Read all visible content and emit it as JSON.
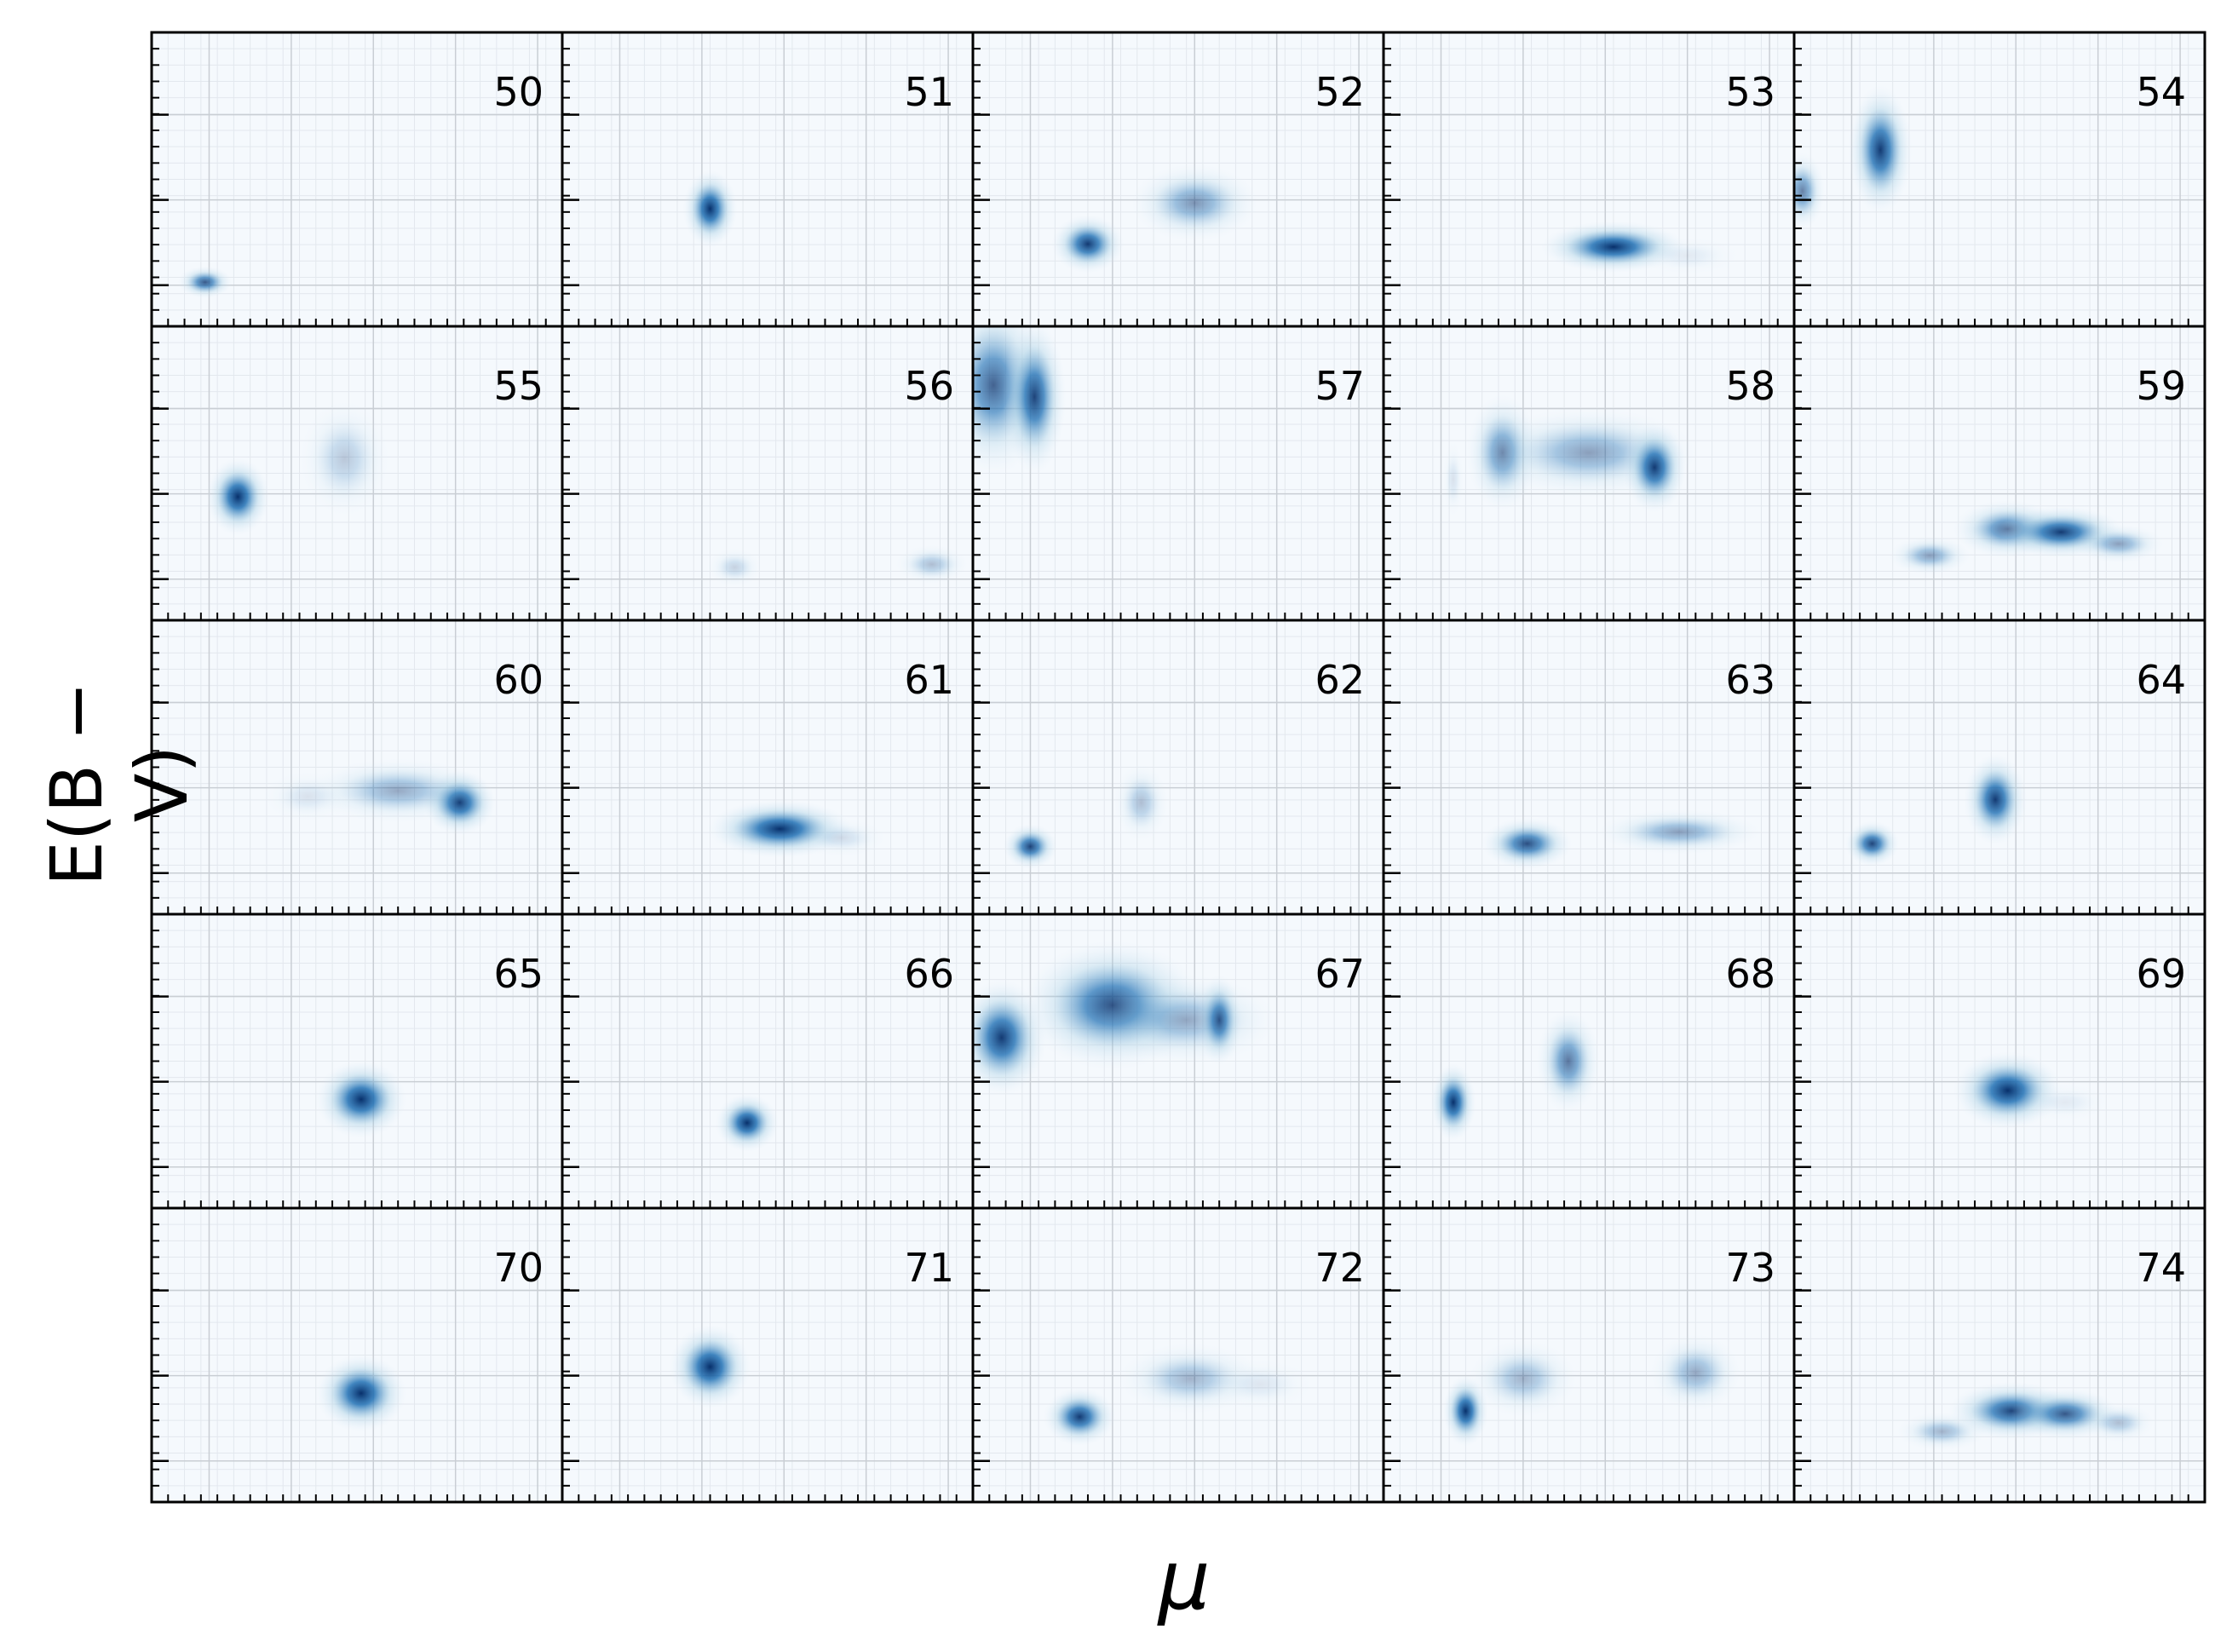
{
  "figure": {
    "xlabel": "μ",
    "ylabel": "E(B − V)"
  },
  "chart_data": {
    "type": "heatmap",
    "colormap": "Blues",
    "grid": true,
    "layout": {
      "rows": 5,
      "cols": 5
    },
    "xlabel": "μ",
    "ylabel": "E(B − V)",
    "axis_range_fraction": {
      "x": [
        0,
        1
      ],
      "y": [
        0,
        1
      ]
    },
    "panels": [
      {
        "label": "50",
        "blobs": [
          {
            "x": 0.13,
            "y": 0.15,
            "sx": 0.03,
            "sy": 0.025,
            "w": 0.8
          }
        ]
      },
      {
        "label": "51",
        "blobs": [
          {
            "x": 0.36,
            "y": 0.4,
            "sx": 0.03,
            "sy": 0.06,
            "w": 1.0
          }
        ]
      },
      {
        "label": "52",
        "blobs": [
          {
            "x": 0.28,
            "y": 0.28,
            "sx": 0.04,
            "sy": 0.045,
            "w": 0.95
          },
          {
            "x": 0.54,
            "y": 0.42,
            "sx": 0.07,
            "sy": 0.06,
            "w": 0.5
          }
        ]
      },
      {
        "label": "53",
        "blobs": [
          {
            "x": 0.56,
            "y": 0.27,
            "sx": 0.08,
            "sy": 0.04,
            "w": 1.0
          },
          {
            "x": 0.74,
            "y": 0.24,
            "sx": 0.06,
            "sy": 0.03,
            "w": 0.08
          }
        ]
      },
      {
        "label": "54",
        "blobs": [
          {
            "x": 0.02,
            "y": 0.46,
            "sx": 0.025,
            "sy": 0.06,
            "w": 0.6
          },
          {
            "x": 0.21,
            "y": 0.6,
            "sx": 0.035,
            "sy": 0.1,
            "w": 0.95
          }
        ]
      },
      {
        "label": "55",
        "blobs": [
          {
            "x": 0.21,
            "y": 0.42,
            "sx": 0.035,
            "sy": 0.06,
            "w": 1.0
          },
          {
            "x": 0.47,
            "y": 0.55,
            "sx": 0.05,
            "sy": 0.09,
            "w": 0.25
          }
        ]
      },
      {
        "label": "56",
        "blobs": [
          {
            "x": 0.42,
            "y": 0.18,
            "sx": 0.03,
            "sy": 0.03,
            "w": 0.2
          },
          {
            "x": 0.9,
            "y": 0.19,
            "sx": 0.04,
            "sy": 0.03,
            "w": 0.3
          }
        ]
      },
      {
        "label": "57",
        "blobs": [
          {
            "x": 0.05,
            "y": 0.8,
            "sx": 0.06,
            "sy": 0.14,
            "w": 0.75
          },
          {
            "x": 0.15,
            "y": 0.76,
            "sx": 0.035,
            "sy": 0.12,
            "w": 0.9
          }
        ]
      },
      {
        "label": "58",
        "blobs": [
          {
            "x": 0.29,
            "y": 0.57,
            "sx": 0.04,
            "sy": 0.09,
            "w": 0.6
          },
          {
            "x": 0.5,
            "y": 0.57,
            "sx": 0.12,
            "sy": 0.07,
            "w": 0.45
          },
          {
            "x": 0.66,
            "y": 0.52,
            "sx": 0.035,
            "sy": 0.07,
            "w": 0.95
          },
          {
            "x": 0.17,
            "y": 0.48,
            "sx": 0.012,
            "sy": 0.06,
            "w": 0.12
          }
        ]
      },
      {
        "label": "59",
        "blobs": [
          {
            "x": 0.33,
            "y": 0.22,
            "sx": 0.045,
            "sy": 0.03,
            "w": 0.45
          },
          {
            "x": 0.52,
            "y": 0.31,
            "sx": 0.06,
            "sy": 0.045,
            "w": 0.7
          },
          {
            "x": 0.65,
            "y": 0.3,
            "sx": 0.07,
            "sy": 0.04,
            "w": 0.95
          },
          {
            "x": 0.79,
            "y": 0.26,
            "sx": 0.05,
            "sy": 0.03,
            "w": 0.45
          }
        ]
      },
      {
        "label": "60",
        "blobs": [
          {
            "x": 0.75,
            "y": 0.38,
            "sx": 0.04,
            "sy": 0.05,
            "w": 1.0
          },
          {
            "x": 0.6,
            "y": 0.42,
            "sx": 0.1,
            "sy": 0.05,
            "w": 0.4
          },
          {
            "x": 0.38,
            "y": 0.4,
            "sx": 0.05,
            "sy": 0.04,
            "w": 0.12
          }
        ]
      },
      {
        "label": "61",
        "blobs": [
          {
            "x": 0.53,
            "y": 0.29,
            "sx": 0.08,
            "sy": 0.045,
            "w": 1.0
          },
          {
            "x": 0.68,
            "y": 0.26,
            "sx": 0.05,
            "sy": 0.03,
            "w": 0.15
          }
        ]
      },
      {
        "label": "62",
        "blobs": [
          {
            "x": 0.14,
            "y": 0.23,
            "sx": 0.03,
            "sy": 0.035,
            "w": 0.9
          },
          {
            "x": 0.41,
            "y": 0.38,
            "sx": 0.03,
            "sy": 0.06,
            "w": 0.3
          }
        ]
      },
      {
        "label": "63",
        "blobs": [
          {
            "x": 0.35,
            "y": 0.24,
            "sx": 0.05,
            "sy": 0.04,
            "w": 0.85
          },
          {
            "x": 0.72,
            "y": 0.28,
            "sx": 0.09,
            "sy": 0.035,
            "w": 0.45
          }
        ]
      },
      {
        "label": "64",
        "blobs": [
          {
            "x": 0.19,
            "y": 0.24,
            "sx": 0.03,
            "sy": 0.035,
            "w": 0.9
          },
          {
            "x": 0.49,
            "y": 0.39,
            "sx": 0.035,
            "sy": 0.07,
            "w": 0.95
          }
        ]
      },
      {
        "label": "65",
        "blobs": [
          {
            "x": 0.51,
            "y": 0.37,
            "sx": 0.05,
            "sy": 0.06,
            "w": 1.0
          }
        ]
      },
      {
        "label": "66",
        "blobs": [
          {
            "x": 0.45,
            "y": 0.29,
            "sx": 0.035,
            "sy": 0.045,
            "w": 1.0
          }
        ]
      },
      {
        "label": "67",
        "blobs": [
          {
            "x": 0.07,
            "y": 0.58,
            "sx": 0.05,
            "sy": 0.09,
            "w": 0.95
          },
          {
            "x": 0.34,
            "y": 0.69,
            "sx": 0.1,
            "sy": 0.1,
            "w": 0.85
          },
          {
            "x": 0.52,
            "y": 0.64,
            "sx": 0.1,
            "sy": 0.07,
            "w": 0.4
          },
          {
            "x": 0.6,
            "y": 0.64,
            "sx": 0.025,
            "sy": 0.07,
            "w": 0.8
          }
        ]
      },
      {
        "label": "68",
        "blobs": [
          {
            "x": 0.17,
            "y": 0.36,
            "sx": 0.025,
            "sy": 0.06,
            "w": 1.0
          },
          {
            "x": 0.45,
            "y": 0.5,
            "sx": 0.035,
            "sy": 0.08,
            "w": 0.65
          }
        ]
      },
      {
        "label": "69",
        "blobs": [
          {
            "x": 0.52,
            "y": 0.4,
            "sx": 0.06,
            "sy": 0.06,
            "w": 1.0
          },
          {
            "x": 0.66,
            "y": 0.36,
            "sx": 0.05,
            "sy": 0.03,
            "w": 0.08
          }
        ]
      },
      {
        "label": "70",
        "blobs": [
          {
            "x": 0.51,
            "y": 0.37,
            "sx": 0.05,
            "sy": 0.06,
            "w": 1.0
          }
        ]
      },
      {
        "label": "71",
        "blobs": [
          {
            "x": 0.36,
            "y": 0.46,
            "sx": 0.045,
            "sy": 0.065,
            "w": 1.0
          }
        ]
      },
      {
        "label": "72",
        "blobs": [
          {
            "x": 0.26,
            "y": 0.29,
            "sx": 0.04,
            "sy": 0.045,
            "w": 0.95
          },
          {
            "x": 0.53,
            "y": 0.42,
            "sx": 0.08,
            "sy": 0.055,
            "w": 0.35
          },
          {
            "x": 0.7,
            "y": 0.4,
            "sx": 0.06,
            "sy": 0.04,
            "w": 0.1
          }
        ]
      },
      {
        "label": "73",
        "blobs": [
          {
            "x": 0.2,
            "y": 0.31,
            "sx": 0.025,
            "sy": 0.055,
            "w": 1.0
          },
          {
            "x": 0.34,
            "y": 0.42,
            "sx": 0.06,
            "sy": 0.06,
            "w": 0.35
          },
          {
            "x": 0.76,
            "y": 0.44,
            "sx": 0.05,
            "sy": 0.06,
            "w": 0.4
          }
        ]
      },
      {
        "label": "74",
        "blobs": [
          {
            "x": 0.36,
            "y": 0.24,
            "sx": 0.05,
            "sy": 0.03,
            "w": 0.35
          },
          {
            "x": 0.53,
            "y": 0.31,
            "sx": 0.07,
            "sy": 0.045,
            "w": 0.9
          },
          {
            "x": 0.66,
            "y": 0.3,
            "sx": 0.06,
            "sy": 0.04,
            "w": 0.8
          },
          {
            "x": 0.79,
            "y": 0.27,
            "sx": 0.04,
            "sy": 0.03,
            "w": 0.3
          }
        ]
      }
    ]
  }
}
